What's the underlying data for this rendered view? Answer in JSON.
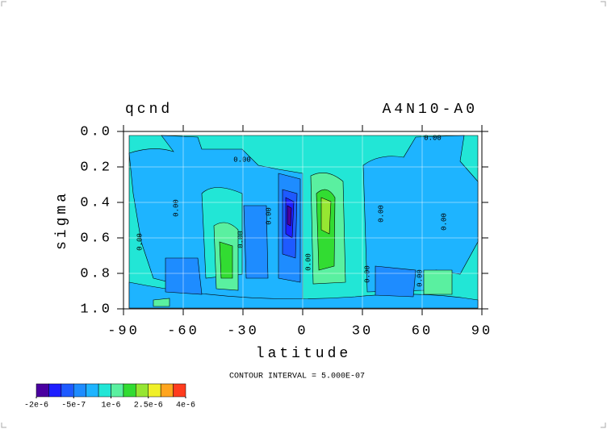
{
  "chart_data": {
    "type": "contour",
    "title_left": "qcnd",
    "title_right": "A4N10-A0",
    "x_label": "latitude",
    "y_label": "sigma",
    "xlim": [
      -90,
      90
    ],
    "xticks": [
      -90,
      -60,
      -30,
      0,
      30,
      60,
      90
    ],
    "ylim": [
      0,
      1
    ],
    "y_inverted": true,
    "yticks": [
      {
        "value": 0,
        "label": "0.0"
      },
      {
        "value": 0.2,
        "label": "0.2"
      },
      {
        "value": 0.4,
        "label": "0.4"
      },
      {
        "value": 0.6,
        "label": "0.6"
      },
      {
        "value": 0.8,
        "label": "0.8"
      },
      {
        "value": 1,
        "label": "1.0"
      }
    ],
    "grid": true,
    "contour_label": "0.00",
    "info": "CONTOUR INTERVAL = 5.000E-07",
    "colorbar": {
      "colors": [
        "#4a00a0",
        "#1e1eff",
        "#1e5aff",
        "#1e8cff",
        "#1eb4ff",
        "#22e6d6",
        "#5af0a0",
        "#32dc32",
        "#96e632",
        "#f0f028",
        "#ffa51e",
        "#ff3c1e"
      ],
      "clim": [
        -2e-06,
        4e-06
      ],
      "ticks": [
        {
          "value": -2e-06,
          "label": "-2e-6"
        },
        {
          "value": -5e-07,
          "label": "-5e-7"
        },
        {
          "value": 1e-06,
          "label": "1e-6"
        },
        {
          "value": 2.5e-06,
          "label": "2.5e-6"
        },
        {
          "value": 4e-06,
          "label": "4e-6"
        }
      ]
    }
  }
}
